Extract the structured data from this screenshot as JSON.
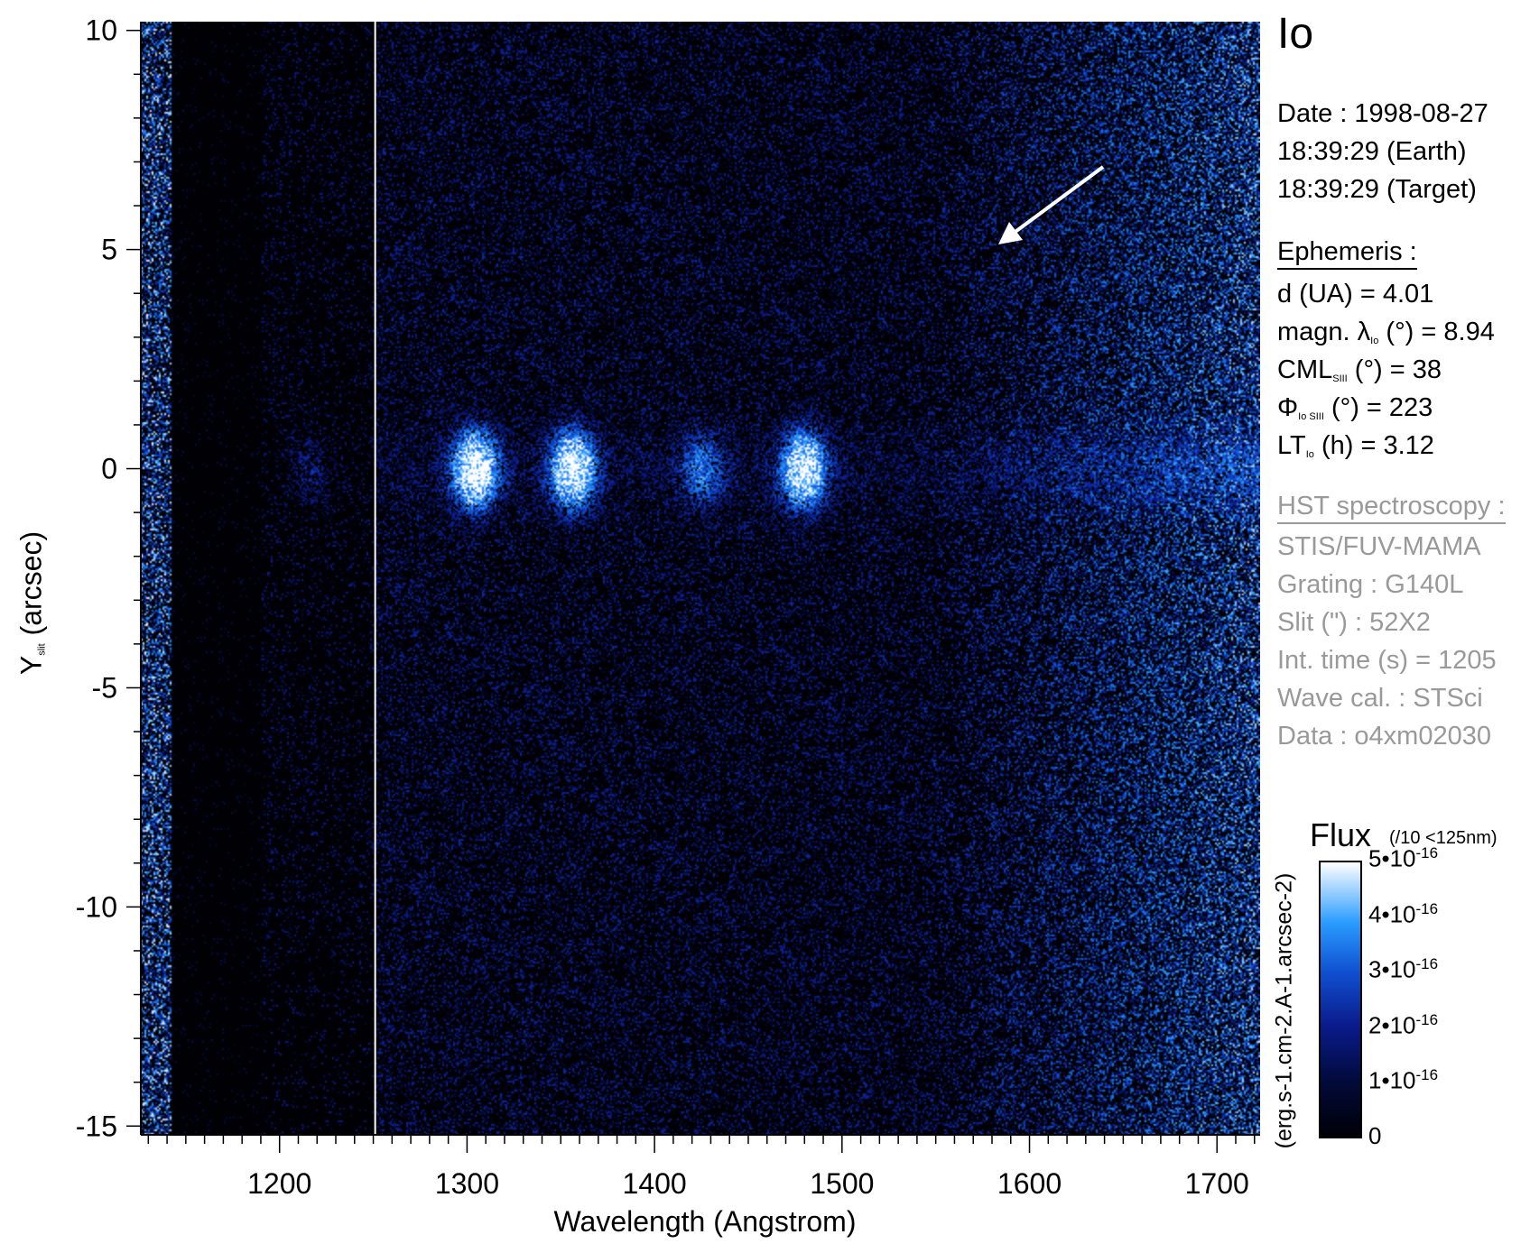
{
  "chart_data": {
    "type": "heatmap",
    "title": "Io",
    "xlabel": "Wavelength (Angstrom)",
    "ylabel": {
      "main": "Y",
      "sub": "slit",
      "unit": "(arcsec)"
    },
    "xlim": [
      1126,
      1723
    ],
    "ylim": [
      -15.2,
      10.2
    ],
    "xticks": [
      "1200",
      "1300",
      "1400",
      "1500",
      "1600",
      "1700"
    ],
    "yticks": [
      "10",
      "5",
      "0",
      "-5",
      "-10",
      "-15"
    ],
    "grid": false,
    "colormap": [
      "#000005",
      "#0a1a8a",
      "#1050d0",
      "#2a9cff",
      "#ffffff"
    ],
    "colorbar": {
      "title": "Flux",
      "note": "(/10 <125nm)",
      "unit": "(erg.s-1.cm-2.A-1.arcsec-2)",
      "ticks": [
        "5•10-16",
        "4•10-16",
        "3•10-16",
        "2•10-16",
        "1•10-16",
        "0"
      ],
      "range": [
        0,
        5e-16
      ]
    },
    "emission_features_angstrom": [
      1216,
      1304,
      1356,
      1425,
      1479
    ],
    "emission_row_arcsec": 0,
    "marker_line_angstrom": 1251,
    "annotation": "arrow"
  },
  "info": {
    "target": "Io",
    "date": "Date : 1998-08-27",
    "earth_time": "18:39:29 (Earth)",
    "target_time": "18:39:29 (Target)",
    "ephemeris_title": "Ephemeris :",
    "d": "d (UA)     = 4.01",
    "magn_pre": "magn. λ",
    "magn_sub": "Io",
    "magn_post": " (°)  = 8.94",
    "cml_pre": "CML",
    "cml_sub": "SIII",
    "cml_post": " (°) = 38",
    "phi_pre": "Φ",
    "phi_sub": "Io SIII",
    "phi_post": " (°) = 223",
    "lt_pre": "LT",
    "lt_sub": "Io",
    "lt_post": " (h) = 3.12",
    "hst_title": "HST spectroscopy :",
    "instrument": "STIS/FUV-MAMA",
    "grating": "Grating : G140L",
    "slit": "Slit (\") : 52X2",
    "int_time": "Int. time (s) = 1205",
    "wave_cal": "Wave cal. : STSci",
    "data_id": "Data : o4xm02030"
  }
}
